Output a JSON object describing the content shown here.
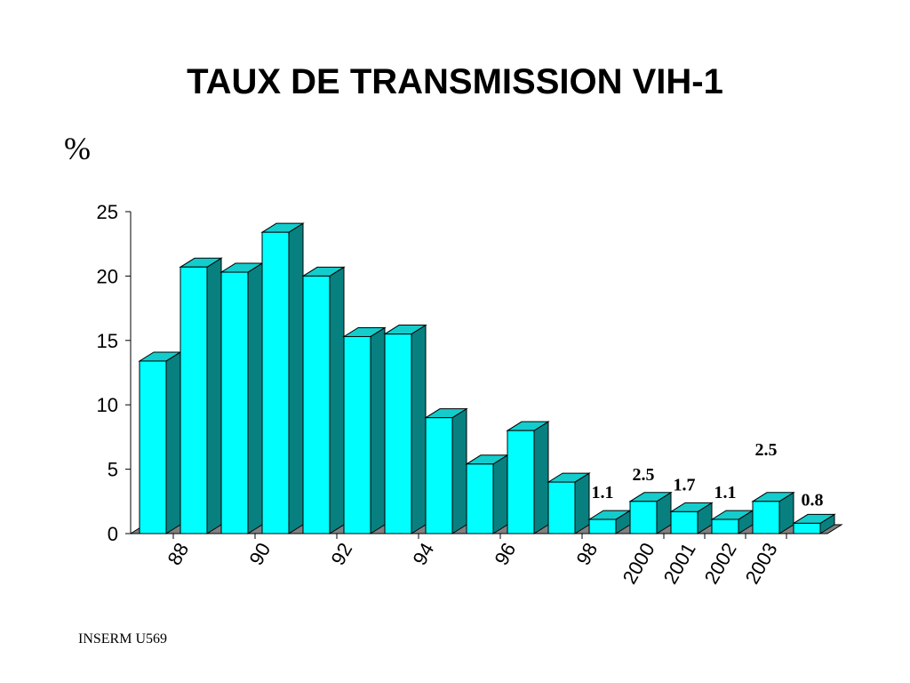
{
  "title": "TAUX DE TRANSMISSION VIH-1",
  "unit_label": "%",
  "credit": "INSERM U569",
  "colors": {
    "bar_front": "#00ffff",
    "bar_top": "#14cccc",
    "bar_side": "#088080",
    "floor": "#808080"
  },
  "chart_data": {
    "type": "bar",
    "title": "TAUX DE TRANSMISSION VIH-1",
    "ylabel": "%",
    "xlabel": "",
    "ylim": [
      0,
      25
    ],
    "yticks": [
      0,
      5,
      10,
      15,
      20,
      25
    ],
    "grid": false,
    "values": [
      13.4,
      20.7,
      20.3,
      23.4,
      20.0,
      15.3,
      15.5,
      9.0,
      5.4,
      8.0,
      4.0,
      1.1,
      2.5,
      1.7,
      1.1,
      2.5,
      0.8
    ],
    "x_tick_labels": [
      "88",
      "90",
      "92",
      "94",
      "96",
      "98",
      "2000",
      "2001",
      "2002",
      "2003"
    ],
    "data_labels": [
      {
        "bar": 11,
        "text": "1.1"
      },
      {
        "bar": 12,
        "text": "2.5"
      },
      {
        "bar": 13,
        "text": "1.7"
      },
      {
        "bar": 14,
        "text": "1.1"
      },
      {
        "bar": 15,
        "text": "2.5"
      },
      {
        "bar": 16,
        "text": "0.8"
      }
    ]
  }
}
